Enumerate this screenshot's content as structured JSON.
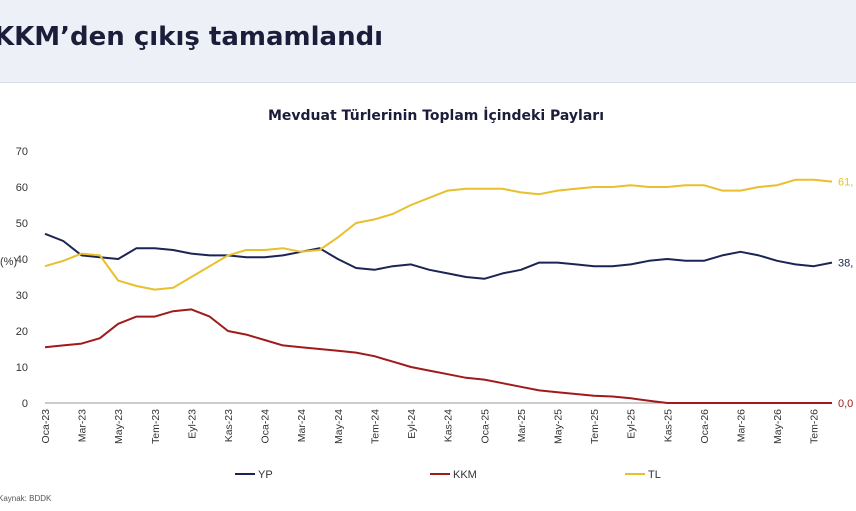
{
  "header": {
    "title": "KKM’den çıkış tamamlandı"
  },
  "source": "Kaynak: BDDK",
  "chart_data": {
    "type": "line",
    "title": "Mevduat Türlerinin Toplam İçindeki Payları",
    "ylabel": "(%)",
    "ylim": [
      0,
      70
    ],
    "yticks": [
      0,
      10,
      20,
      30,
      40,
      50,
      60,
      70
    ],
    "x_labels": [
      "Oca-23",
      "Mar-23",
      "May-23",
      "Tem-23",
      "Eyl-23",
      "Kas-23",
      "Oca-24",
      "Mar-24",
      "May-24",
      "Tem-24",
      "Eyl-24",
      "Kas-24",
      "Oca-25",
      "Mar-25",
      "May-25",
      "Tem-25",
      "Eyl-25",
      "Kas-25",
      "Oca-26",
      "Mar-26",
      "May-26",
      "Tem-26"
    ],
    "x": [
      "2023-01",
      "2023-02",
      "2023-03",
      "2023-04",
      "2023-05",
      "2023-06",
      "2023-07",
      "2023-08",
      "2023-09",
      "2023-10",
      "2023-11",
      "2023-12",
      "2024-01",
      "2024-02",
      "2024-03",
      "2024-04",
      "2024-05",
      "2024-06",
      "2024-07",
      "2024-08",
      "2024-09",
      "2024-10",
      "2024-11",
      "2024-12",
      "2025-01",
      "2025-02",
      "2025-03",
      "2025-04",
      "2025-05",
      "2025-06",
      "2025-07",
      "2025-08",
      "2025-09",
      "2025-10",
      "2025-11",
      "2025-12",
      "2026-01",
      "2026-02",
      "2026-03",
      "2026-04",
      "2026-05",
      "2026-06",
      "2026-07",
      "2026-08"
    ],
    "series": [
      {
        "name": "YP",
        "color": "#1b2553",
        "end_label": "38,",
        "values": [
          47,
          45,
          41,
          40.5,
          40,
          43,
          43,
          42.5,
          41.5,
          41,
          41,
          40.5,
          40.5,
          41,
          42,
          43,
          40,
          37.5,
          37,
          38,
          38.5,
          37,
          36,
          35,
          34.5,
          36,
          37,
          39,
          39,
          38.5,
          38,
          38,
          38.5,
          39.5,
          40,
          39.5,
          39.5,
          41,
          42,
          41,
          39.5,
          38.5,
          38,
          39
        ]
      },
      {
        "name": "KKM",
        "color": "#a01a1a",
        "end_label": "0,0",
        "values": [
          15.5,
          16,
          16.5,
          18,
          22,
          24,
          24,
          25.5,
          26,
          24,
          20,
          19,
          17.5,
          16,
          15.5,
          15,
          14.5,
          14,
          13,
          11.5,
          10,
          9,
          8,
          7,
          6.5,
          5.5,
          4.5,
          3.5,
          3,
          2.5,
          2,
          1.8,
          1.3,
          0.6,
          0,
          0,
          0,
          0,
          0,
          0,
          0,
          0,
          0,
          0
        ]
      },
      {
        "name": "TL",
        "color": "#e8bf2c",
        "end_label": "61,",
        "values": [
          38,
          39.5,
          41.5,
          41,
          34,
          32.5,
          31.5,
          32,
          35,
          38,
          41,
          42.5,
          42.5,
          43,
          42,
          42.5,
          46,
          50,
          51,
          52.5,
          55,
          57,
          59,
          59.5,
          59.5,
          59.5,
          58.5,
          58,
          59,
          59.5,
          60,
          60,
          60.5,
          60,
          60,
          60.5,
          60.5,
          59,
          59,
          60,
          60.5,
          62,
          62,
          61.5
        ]
      }
    ],
    "legend_position": "bottom",
    "grid": false
  }
}
